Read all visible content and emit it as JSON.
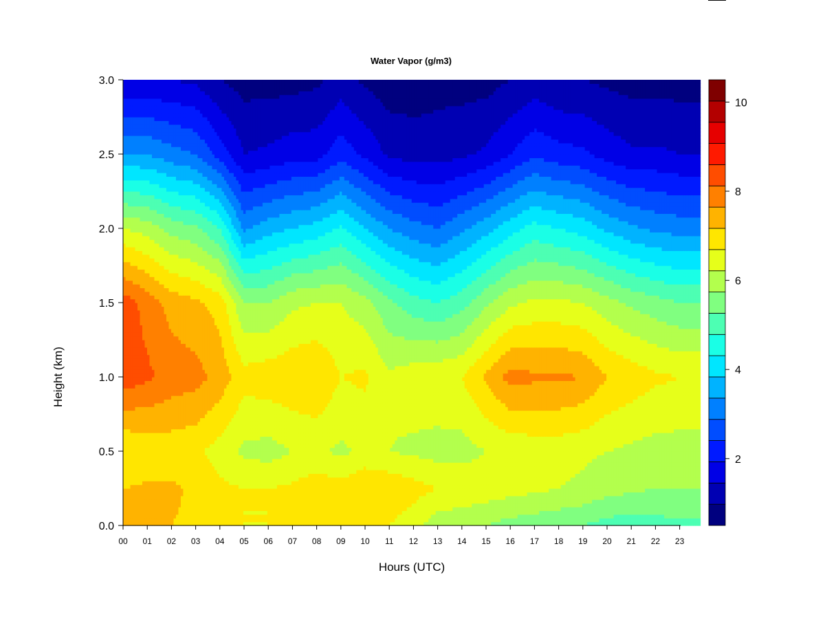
{
  "chart_data": {
    "type": "heatmap",
    "title": "Water Vapor (g/m3)",
    "xlabel": "Hours (UTC)",
    "ylabel": "Height (km)",
    "xlim": [
      0,
      23.85
    ],
    "ylim": [
      0,
      3.0
    ],
    "x_ticks": [
      0,
      1,
      2,
      3,
      4,
      5,
      6,
      7,
      8,
      9,
      10,
      11,
      12,
      13,
      14,
      15,
      16,
      17,
      18,
      19,
      20,
      21,
      22,
      23
    ],
    "x_tick_labels": [
      "00",
      "01",
      "02",
      "03",
      "04",
      "05",
      "06",
      "07",
      "08",
      "09",
      "10",
      "11",
      "12",
      "13",
      "14",
      "15",
      "16",
      "17",
      "18",
      "19",
      "20",
      "21",
      "22",
      "23"
    ],
    "y_ticks": [
      0.0,
      0.5,
      1.0,
      1.5,
      2.0,
      2.5,
      3.0
    ],
    "y_tick_labels": [
      "0.0",
      "0.5",
      "1.0",
      "1.5",
      "2.0",
      "2.5",
      "3.0"
    ],
    "colorbar": {
      "min": 0.5,
      "max": 10.5,
      "level_step": 0.5,
      "ticks": [
        2,
        4,
        6,
        8,
        10
      ],
      "tick_labels": [
        "2",
        "4",
        "6",
        "8",
        "10"
      ],
      "colors": [
        "#00007f",
        "#0000b3",
        "#0000e6",
        "#001aff",
        "#004dff",
        "#0080ff",
        "#00b3ff",
        "#00e6ff",
        "#1affe6",
        "#4dffb3",
        "#80ff80",
        "#b3ff4d",
        "#e6ff1a",
        "#ffe600",
        "#ffb300",
        "#ff8000",
        "#ff4d00",
        "#ff1a00",
        "#e60000",
        "#b30000",
        "#7f0000"
      ]
    },
    "hours": [
      0,
      1,
      2,
      3,
      4,
      5,
      6,
      7,
      8,
      9,
      10,
      11,
      12,
      13,
      14,
      15,
      16,
      17,
      18,
      19,
      20,
      21,
      22,
      23
    ],
    "heights_km": [
      0.0,
      0.25,
      0.5,
      1.0,
      1.5,
      2.0,
      2.5,
      3.0
    ],
    "values": [
      [
        7.5,
        7.5,
        7.0,
        8.8,
        8.8,
        6.5,
        3.5,
        1.5
      ],
      [
        7.6,
        7.6,
        7.1,
        8.6,
        8.3,
        6.3,
        3.5,
        1.5
      ],
      [
        7.5,
        7.6,
        7.2,
        8.3,
        7.8,
        5.8,
        3.2,
        1.5
      ],
      [
        7.4,
        7.4,
        7.1,
        8.2,
        7.6,
        5.6,
        3.0,
        1.4
      ],
      [
        7.2,
        7.1,
        6.8,
        7.8,
        7.3,
        5.0,
        2.3,
        1.0
      ],
      [
        7.0,
        7.0,
        6.4,
        7.2,
        6.0,
        3.4,
        1.5,
        0.8
      ],
      [
        7.0,
        7.0,
        6.3,
        7.3,
        6.0,
        3.8,
        1.6,
        0.8
      ],
      [
        7.0,
        7.1,
        6.5,
        7.4,
        6.4,
        4.0,
        1.8,
        0.8
      ],
      [
        7.0,
        7.3,
        6.6,
        7.5,
        6.5,
        4.2,
        1.8,
        0.9
      ],
      [
        7.0,
        7.2,
        6.4,
        7.0,
        6.5,
        4.6,
        2.3,
        1.2
      ],
      [
        7.1,
        7.5,
        6.6,
        7.1,
        6.2,
        4.0,
        1.9,
        0.9
      ],
      [
        7.0,
        7.4,
        6.5,
        6.6,
        5.6,
        3.5,
        1.4,
        0.7
      ],
      [
        6.7,
        7.2,
        6.4,
        6.8,
        5.2,
        3.2,
        1.3,
        0.7
      ],
      [
        6.2,
        7.0,
        6.3,
        6.9,
        5.0,
        3.0,
        1.3,
        0.8
      ],
      [
        6.1,
        6.9,
        6.3,
        7.0,
        5.3,
        3.4,
        1.4,
        0.8
      ],
      [
        6.0,
        6.8,
        6.5,
        7.6,
        5.9,
        3.8,
        1.6,
        0.8
      ],
      [
        5.8,
        6.7,
        6.6,
        8.2,
        6.4,
        4.3,
        2.0,
        1.0
      ],
      [
        5.7,
        6.6,
        6.7,
        8.1,
        6.6,
        4.7,
        2.4,
        1.2
      ],
      [
        5.6,
        6.5,
        6.7,
        8.1,
        6.6,
        4.5,
        2.2,
        1.0
      ],
      [
        5.5,
        6.4,
        6.6,
        8.0,
        6.5,
        4.3,
        2.1,
        1.0
      ],
      [
        5.3,
        6.2,
        6.5,
        7.5,
        6.2,
        3.9,
        1.8,
        0.9
      ],
      [
        5.2,
        6.1,
        6.4,
        7.3,
        5.9,
        3.6,
        1.6,
        0.8
      ],
      [
        5.3,
        6.0,
        6.3,
        7.1,
        5.7,
        3.4,
        1.6,
        0.8
      ],
      [
        5.4,
        6.0,
        6.3,
        7.0,
        5.5,
        3.3,
        1.5,
        0.8
      ]
    ]
  }
}
